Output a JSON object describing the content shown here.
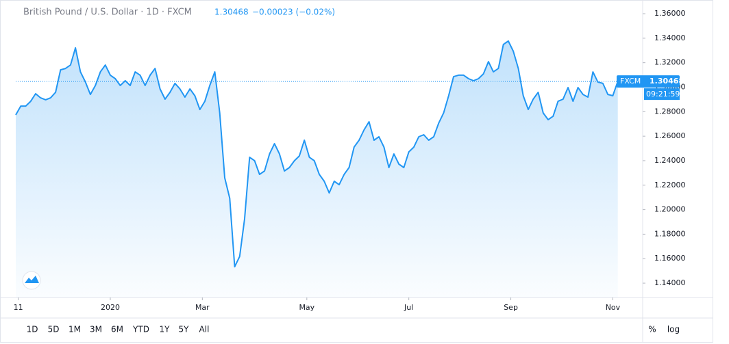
{
  "header": {
    "symbol": "British Pound / U.S. Dollar · 1D · FXCM",
    "price": "1.30468",
    "change": "−0.00023 (−0.02%)"
  },
  "chart_data": {
    "type": "area",
    "color": "#2196f3",
    "values": [
      1.2774,
      1.2846,
      1.2846,
      1.2885,
      1.2947,
      1.2913,
      1.2897,
      1.2913,
      1.2958,
      1.3142,
      1.3153,
      1.3181,
      1.3321,
      1.3125,
      1.3042,
      1.2941,
      1.3014,
      1.3125,
      1.3181,
      1.3098,
      1.307,
      1.3014,
      1.3053,
      1.3014,
      1.3125,
      1.3098,
      1.3014,
      1.3098,
      1.3153,
      1.2986,
      1.2902,
      1.2958,
      1.3031,
      1.2986,
      1.2919,
      1.2986,
      1.293,
      1.2818,
      1.2885,
      1.3014,
      1.3125,
      1.279,
      1.226,
      1.2093,
      1.1534,
      1.1618,
      1.1925,
      1.2428,
      1.24,
      1.2288,
      1.2316,
      1.2455,
      1.2539,
      1.2455,
      1.2316,
      1.2344,
      1.24,
      1.2439,
      1.2567,
      1.2428,
      1.24,
      1.2288,
      1.2232,
      1.2137,
      1.2232,
      1.2204,
      1.2288,
      1.2344,
      1.2511,
      1.2567,
      1.2651,
      1.2718,
      1.2567,
      1.2595,
      1.2511,
      1.2344,
      1.2455,
      1.2372,
      1.2344,
      1.2472,
      1.2511,
      1.2595,
      1.2612,
      1.2567,
      1.2595,
      1.2707,
      1.279,
      1.293,
      1.3086,
      1.3098,
      1.3098,
      1.307,
      1.3053,
      1.307,
      1.3109,
      1.3209,
      1.3125,
      1.3153,
      1.3349,
      1.3377,
      1.3293,
      1.3153,
      1.293,
      1.2818,
      1.2902,
      1.2958,
      1.279,
      1.2735,
      1.2763,
      1.2885,
      1.2902,
      1.2997,
      1.2885,
      1.2997,
      1.2941,
      1.2919,
      1.3125,
      1.3042,
      1.3031,
      1.2941,
      1.293,
      1.30468
    ],
    "xlim": [
      0,
      126
    ],
    "xticks": [
      {
        "value": 0.5,
        "label": "11"
      },
      {
        "value": 19,
        "label": "2020"
      },
      {
        "value": 37.5,
        "label": "Mar"
      },
      {
        "value": 58.5,
        "label": "May"
      },
      {
        "value": 79,
        "label": "Jul"
      },
      {
        "value": 99.5,
        "label": "Sep"
      },
      {
        "value": 120,
        "label": "Nov"
      }
    ],
    "ylim": [
      1.1283,
      1.3684
    ],
    "yticks": [
      {
        "value": 1.14,
        "label": "1.14000"
      },
      {
        "value": 1.16,
        "label": "1.16000"
      },
      {
        "value": 1.18,
        "label": "1.18000"
      },
      {
        "value": 1.2,
        "label": "1.20000"
      },
      {
        "value": 1.22,
        "label": "1.22000"
      },
      {
        "value": 1.24,
        "label": "1.24000"
      },
      {
        "value": 1.26,
        "label": "1.26000"
      },
      {
        "value": 1.28,
        "label": "1.28000"
      },
      {
        "value": 1.3,
        "label": "1.30000"
      },
      {
        "value": 1.32,
        "label": "1.32000"
      },
      {
        "value": 1.34,
        "label": "1.34000"
      },
      {
        "value": 1.36,
        "label": "1.36000"
      }
    ],
    "price_tag": "FXCM",
    "countdown": "09:21:59"
  },
  "range_buttons": [
    "1D",
    "5D",
    "1M",
    "3M",
    "6M",
    "YTD",
    "1Y",
    "5Y",
    "All"
  ],
  "scale_buttons": [
    "%",
    "log"
  ]
}
